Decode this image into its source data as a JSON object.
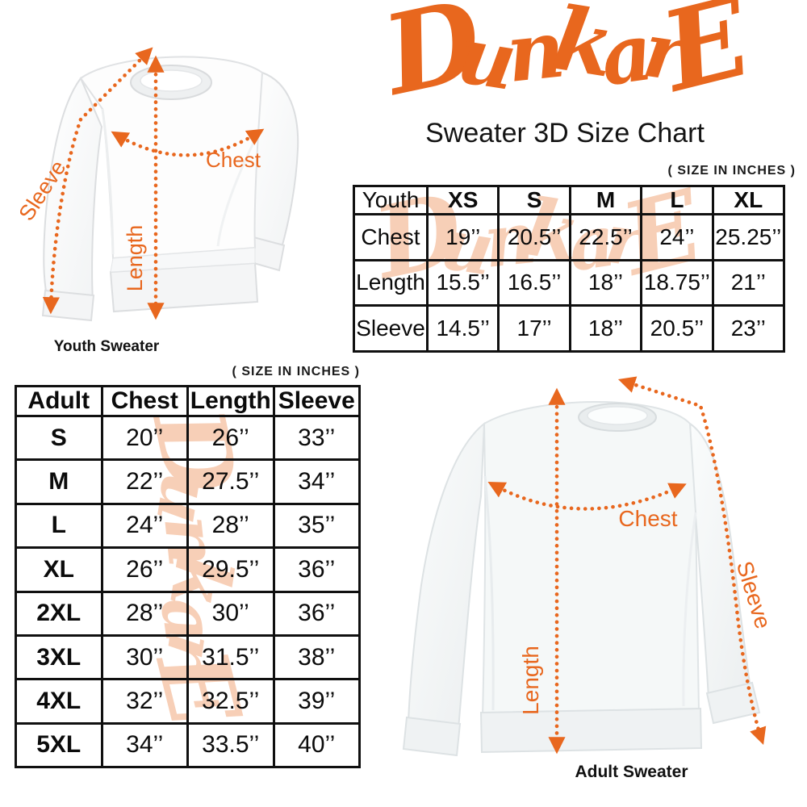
{
  "brand": {
    "logo_text": "DunkarE",
    "accent_color": "#E8671E",
    "watermark_color": "#F7CDB4"
  },
  "header": {
    "title": "Sweater 3D Size Chart"
  },
  "youth_diagram": {
    "caption": "Youth Sweater",
    "labels": {
      "chest": "Chest",
      "length": "Length",
      "sleeve": "Sleeve"
    }
  },
  "adult_diagram": {
    "caption": "Adult Sweater",
    "labels": {
      "chest": "Chest",
      "length": "Length",
      "sleeve": "Sleeve"
    }
  },
  "chart_data": [
    {
      "type": "table",
      "size_note": "( SIZE IN INCHES )",
      "columns": [
        "Youth",
        "XS",
        "S",
        "M",
        "L",
        "XL"
      ],
      "rows": [
        {
          "label": "Chest",
          "values": [
            "19’’",
            "20.5’’",
            "22.5’’",
            "24’’",
            "25.25’’"
          ]
        },
        {
          "label": "Length",
          "values": [
            "15.5’’",
            "16.5’’",
            "18’’",
            "18.75’’",
            "21’’"
          ]
        },
        {
          "label": "Sleeve",
          "values": [
            "14.5’’",
            "17’’",
            "18’’",
            "20.5’’",
            "23’’"
          ]
        }
      ]
    },
    {
      "type": "table",
      "size_note": "( SIZE IN INCHES )",
      "columns": [
        "Adult",
        "Chest",
        "Length",
        "Sleeve"
      ],
      "rows": [
        {
          "label": "S",
          "values": [
            "20’’",
            "26’’",
            "33’’"
          ]
        },
        {
          "label": "M",
          "values": [
            "22’’",
            "27.5’’",
            "34’’"
          ]
        },
        {
          "label": "L",
          "values": [
            "24’’",
            "28’’",
            "35’’"
          ]
        },
        {
          "label": "XL",
          "values": [
            "26’’",
            "29.5’’",
            "36’’"
          ]
        },
        {
          "label": "2XL",
          "values": [
            "28’’",
            "30’’",
            "36’’"
          ]
        },
        {
          "label": "3XL",
          "values": [
            "30’’",
            "31.5’’",
            "38’’"
          ]
        },
        {
          "label": "4XL",
          "values": [
            "32’’",
            "32.5’’",
            "39’’"
          ]
        },
        {
          "label": "5XL",
          "values": [
            "34’’",
            "33.5’’",
            "40’’"
          ]
        }
      ]
    }
  ]
}
